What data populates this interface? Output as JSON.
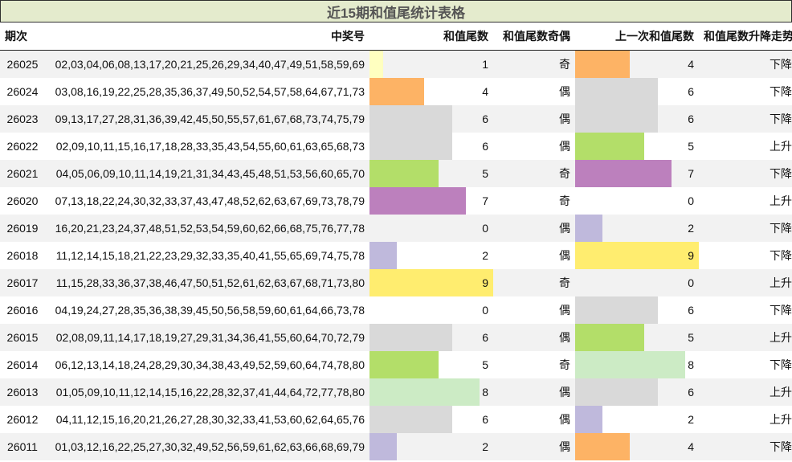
{
  "title": "近15期和值尾统计表格",
  "headers": {
    "period": "期次",
    "numbers": "中奖号",
    "sum_tail": "和值尾数",
    "parity": "和值尾数奇偶",
    "prev_sum_tail": "上一次和值尾数",
    "trend": "和值尾数升降走势"
  },
  "bar_max": 9,
  "tail_colors": {
    "0": "transparent",
    "1": "#ffffc0",
    "2": "#bfb9dc",
    "4": "#fdb365",
    "5": "#b3de69",
    "6": "#d9d9d9",
    "7": "#bc80bd",
    "8": "#ccebc5",
    "9": "#ffed6f"
  },
  "rows": [
    {
      "period": "26025",
      "numbers": "02,03,04,06,08,13,17,20,21,25,26,29,34,40,47,49,51,58,59,69",
      "sum_tail": "1",
      "parity": "奇",
      "prev_sum_tail": "4",
      "trend": "下降"
    },
    {
      "period": "26024",
      "numbers": "03,08,16,19,22,25,28,35,36,37,49,50,52,54,57,58,64,67,71,73",
      "sum_tail": "4",
      "parity": "偶",
      "prev_sum_tail": "6",
      "trend": "下降"
    },
    {
      "period": "26023",
      "numbers": "09,13,17,27,28,31,36,39,42,45,50,55,57,61,67,68,73,74,75,79",
      "sum_tail": "6",
      "parity": "偶",
      "prev_sum_tail": "6",
      "trend": "下降"
    },
    {
      "period": "26022",
      "numbers": "02,09,10,11,15,16,17,18,28,33,35,43,54,55,60,61,63,65,68,73",
      "sum_tail": "6",
      "parity": "偶",
      "prev_sum_tail": "5",
      "trend": "上升"
    },
    {
      "period": "26021",
      "numbers": "04,05,06,09,10,11,14,19,21,31,34,43,45,48,51,53,56,60,65,70",
      "sum_tail": "5",
      "parity": "奇",
      "prev_sum_tail": "7",
      "trend": "下降"
    },
    {
      "period": "26020",
      "numbers": "07,13,18,22,24,30,32,33,37,43,47,48,52,62,63,67,69,73,78,79",
      "sum_tail": "7",
      "parity": "奇",
      "prev_sum_tail": "0",
      "trend": "上升"
    },
    {
      "period": "26019",
      "numbers": "16,20,21,23,24,37,48,51,52,53,54,59,60,62,66,68,75,76,77,78",
      "sum_tail": "0",
      "parity": "偶",
      "prev_sum_tail": "2",
      "trend": "下降"
    },
    {
      "period": "26018",
      "numbers": "11,12,14,15,18,21,22,23,29,32,33,35,40,41,55,65,69,74,75,78",
      "sum_tail": "2",
      "parity": "偶",
      "prev_sum_tail": "9",
      "trend": "下降"
    },
    {
      "period": "26017",
      "numbers": "11,15,28,33,36,37,38,46,47,50,51,52,61,62,63,67,68,71,73,80",
      "sum_tail": "9",
      "parity": "奇",
      "prev_sum_tail": "0",
      "trend": "上升"
    },
    {
      "period": "26016",
      "numbers": "04,19,24,27,28,35,36,38,39,45,50,56,58,59,60,61,64,66,73,78",
      "sum_tail": "0",
      "parity": "偶",
      "prev_sum_tail": "6",
      "trend": "下降"
    },
    {
      "period": "26015",
      "numbers": "02,08,09,11,14,17,18,19,27,29,31,34,36,41,55,60,64,70,72,79",
      "sum_tail": "6",
      "parity": "偶",
      "prev_sum_tail": "5",
      "trend": "上升"
    },
    {
      "period": "26014",
      "numbers": "06,12,13,14,18,24,28,29,30,34,38,43,49,52,59,60,64,74,78,80",
      "sum_tail": "5",
      "parity": "奇",
      "prev_sum_tail": "8",
      "trend": "下降"
    },
    {
      "period": "26013",
      "numbers": "01,05,09,10,11,12,14,15,16,22,28,32,37,41,44,64,72,77,78,80",
      "sum_tail": "8",
      "parity": "偶",
      "prev_sum_tail": "6",
      "trend": "上升"
    },
    {
      "period": "26012",
      "numbers": "04,11,12,15,16,20,21,26,27,28,30,32,33,41,53,60,62,64,65,76",
      "sum_tail": "6",
      "parity": "偶",
      "prev_sum_tail": "2",
      "trend": "上升"
    },
    {
      "period": "26011",
      "numbers": "01,03,12,16,22,25,27,30,32,49,52,56,59,61,62,63,66,68,69,79",
      "sum_tail": "2",
      "parity": "偶",
      "prev_sum_tail": "4",
      "trend": "下降"
    }
  ]
}
